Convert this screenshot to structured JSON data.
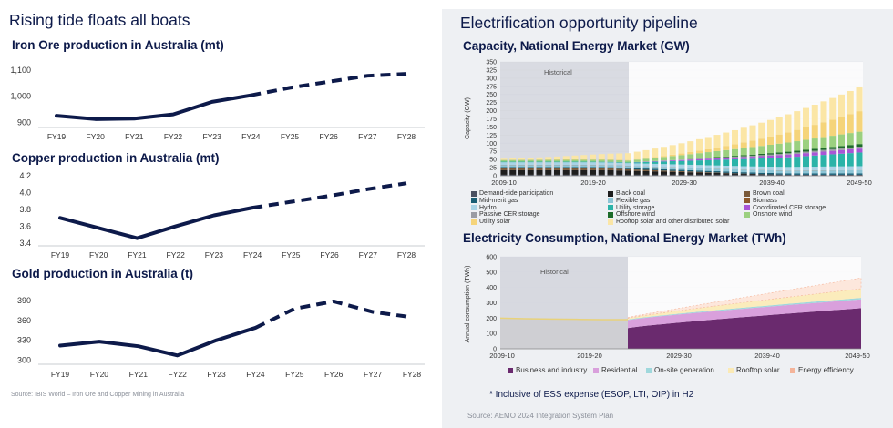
{
  "left_panel": {
    "title": "Rising tide floats all boats",
    "source": "Source: IBIS World – Iron Ore and Copper Mining in Australia"
  },
  "right_panel": {
    "title": "Electrification opportunity pipeline",
    "note": "* Inclusive of ESS expense (ESOP, LTI, OIP) in H2",
    "source": "Source: AEMO 2024 Integration System Plan"
  },
  "colors": {
    "navy": "#0d1a4a",
    "historical_shade": "#dcdee4",
    "grid": "#e4e6ea"
  },
  "chart_data": [
    {
      "type": "line",
      "title": "Iron Ore production in Australia (mt)",
      "categories": [
        "FY19",
        "FY20",
        "FY21",
        "FY22",
        "FY23",
        "FY24",
        "FY25",
        "FY26",
        "FY27",
        "FY28"
      ],
      "values": [
        925,
        912,
        914,
        930,
        978,
        1003,
        1032,
        1055,
        1078,
        1085
      ],
      "forecast_from_index": 5,
      "yticks": [
        "900",
        "1,000",
        "1,100"
      ],
      "ytick_values": [
        900,
        1000,
        1100
      ],
      "ylim": [
        880,
        1110
      ]
    },
    {
      "type": "line",
      "title": "Copper production in Australia (mt)",
      "categories": [
        "FY19",
        "FY20",
        "FY21",
        "FY22",
        "FY23",
        "FY24",
        "FY25",
        "FY26",
        "FY27",
        "FY28"
      ],
      "values": [
        3.7,
        3.58,
        3.46,
        3.6,
        3.73,
        3.82,
        3.89,
        3.96,
        4.04,
        4.11
      ],
      "forecast_from_index": 5,
      "yticks": [
        "3.4",
        "3.6",
        "3.8",
        "4.0",
        "4.2"
      ],
      "ytick_values": [
        3.4,
        3.6,
        3.8,
        4.0,
        4.2
      ],
      "ylim": [
        3.38,
        4.22
      ]
    },
    {
      "type": "line",
      "title": "Gold production in Australia (t)",
      "categories": [
        "FY19",
        "FY20",
        "FY21",
        "FY22",
        "FY23",
        "FY24",
        "FY25",
        "FY26",
        "FY27",
        "FY28"
      ],
      "values": [
        322,
        328,
        321,
        307,
        330,
        349,
        378,
        389,
        373,
        365
      ],
      "forecast_from_index": 5,
      "yticks": [
        "300",
        "330",
        "360",
        "390"
      ],
      "ytick_values": [
        300,
        330,
        360,
        390
      ],
      "ylim": [
        295,
        400
      ]
    },
    {
      "type": "bar",
      "stacked": true,
      "title": "Capacity, National Energy Market (GW)",
      "ylabel": "Capacity (GW)",
      "xticks": [
        "2009-10",
        "2019-20",
        "2029-30",
        "2039-40",
        "2049-50"
      ],
      "yticks": [
        "0",
        "25",
        "50",
        "75",
        "100",
        "125",
        "150",
        "175",
        "200",
        "225",
        "250",
        "275",
        "300",
        "325",
        "350"
      ],
      "ylim": [
        0,
        350
      ],
      "historical_label": "Historical",
      "historical_until": "2023-24",
      "legend": [
        {
          "name": "Demand-side participation",
          "color": "#4a5060"
        },
        {
          "name": "Black coal",
          "color": "#1e1e1e"
        },
        {
          "name": "Brown coal",
          "color": "#7a5a3a"
        },
        {
          "name": "Mid-merit gas",
          "color": "#1a5e75"
        },
        {
          "name": "Flexible gas",
          "color": "#8dc5d6"
        },
        {
          "name": "Biomass",
          "color": "#8e5a2b"
        },
        {
          "name": "Hydro",
          "color": "#a9d3e6"
        },
        {
          "name": "Utility storage",
          "color": "#2bb3a8"
        },
        {
          "name": "Coordinated CER storage",
          "color": "#a855d6"
        },
        {
          "name": "Passive CER storage",
          "color": "#9a9ca3"
        },
        {
          "name": "Offshore wind",
          "color": "#1d6b2a"
        },
        {
          "name": "Onshore wind",
          "color": "#9bd07f"
        },
        {
          "name": "Utility solar",
          "color": "#f5d47a"
        },
        {
          "name": "Rooftop solar and other distributed solar",
          "color": "#fbe6a6"
        }
      ]
    },
    {
      "type": "area",
      "stacked": true,
      "title": "Electricity Consumption, National Energy Market (TWh)",
      "ylabel": "Annual consumption (TWh)",
      "xticks": [
        "2009-10",
        "2019-20",
        "2029-30",
        "2039-40",
        "2049-50"
      ],
      "yticks": [
        "0",
        "100",
        "200",
        "300",
        "400",
        "500",
        "600"
      ],
      "ylim": [
        0,
        600
      ],
      "historical_label": "Historical",
      "historical_until": "2023-24",
      "historical_total": [
        200,
        196,
        194,
        192,
        190,
        190
      ],
      "legend": [
        {
          "name": "Business and industry",
          "color": "#6a2a6e"
        },
        {
          "name": "Residential",
          "color": "#d9a0dc"
        },
        {
          "name": "On-site generation",
          "color": "#9fd8dc"
        },
        {
          "name": "Rooftop solar",
          "color": "#fbeab5"
        },
        {
          "name": "Energy efficiency",
          "color": "#f4b49a"
        }
      ]
    }
  ]
}
